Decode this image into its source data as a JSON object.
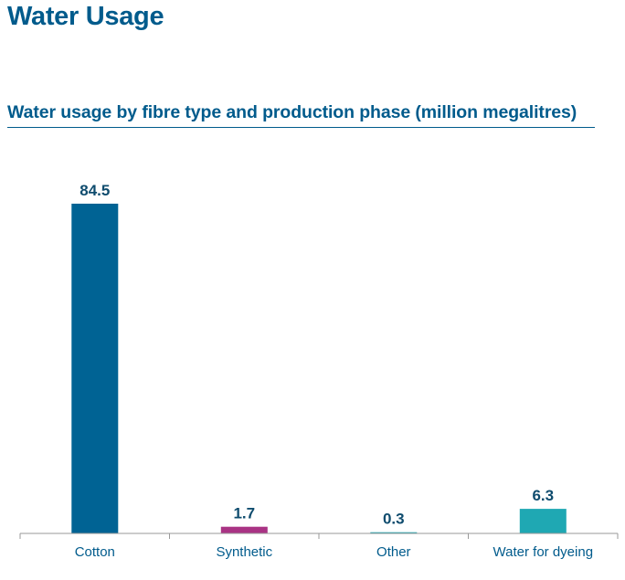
{
  "page": {
    "title": "Water Usage"
  },
  "chart_data": {
    "type": "bar",
    "title": "Water usage by fibre type and production phase (million megalitres)",
    "xlabel": "",
    "ylabel": "",
    "categories": [
      "Cotton",
      "Synthetic",
      "Other",
      "Water for dyeing"
    ],
    "values": [
      84.5,
      1.7,
      0.3,
      6.3
    ],
    "value_labels": [
      "84.5",
      "1.7",
      "0.3",
      "6.3"
    ],
    "colors": [
      "#006394",
      "#a93384",
      "#1fa8b3",
      "#1fa8b3"
    ],
    "ylim": [
      0,
      84.5
    ],
    "grid": false,
    "legend": "none"
  }
}
